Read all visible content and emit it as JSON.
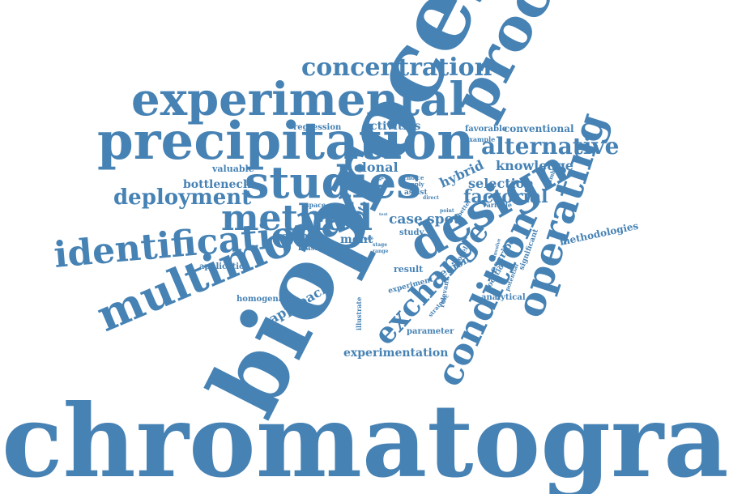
{
  "word_cloud": {
    "color": "#4682b4",
    "words": [
      "chromatography",
      "bioprocess",
      "experimental",
      "precipitation",
      "studies",
      "process",
      "design",
      "operating",
      "condition",
      "multimodal",
      "identification",
      "method",
      "exchange",
      "concentration",
      "alternative",
      "deployment",
      "factorial",
      "bottleneck",
      "activities",
      "regression",
      "conventional",
      "favorable",
      "example",
      "knowledge",
      "selection",
      "hybrid",
      "valuable",
      "clonal",
      "case",
      "spot",
      "methodologies",
      "optimal",
      "feasible",
      "application",
      "homogenate",
      "approach",
      "ment",
      "result",
      "region",
      "experiment",
      "describe",
      "analytical",
      "experimentation",
      "parameter",
      "study",
      "rapid",
      "space",
      "choice",
      "supply",
      "assist",
      "direct",
      "variable",
      "better",
      "model",
      "involve",
      "location",
      "potential",
      "significant",
      "number",
      "range",
      "stage",
      "paper",
      "point",
      "well",
      "illustrate",
      "strategic",
      "relevant",
      "data",
      "set",
      "test",
      "variety",
      "three",
      "route"
    ]
  }
}
